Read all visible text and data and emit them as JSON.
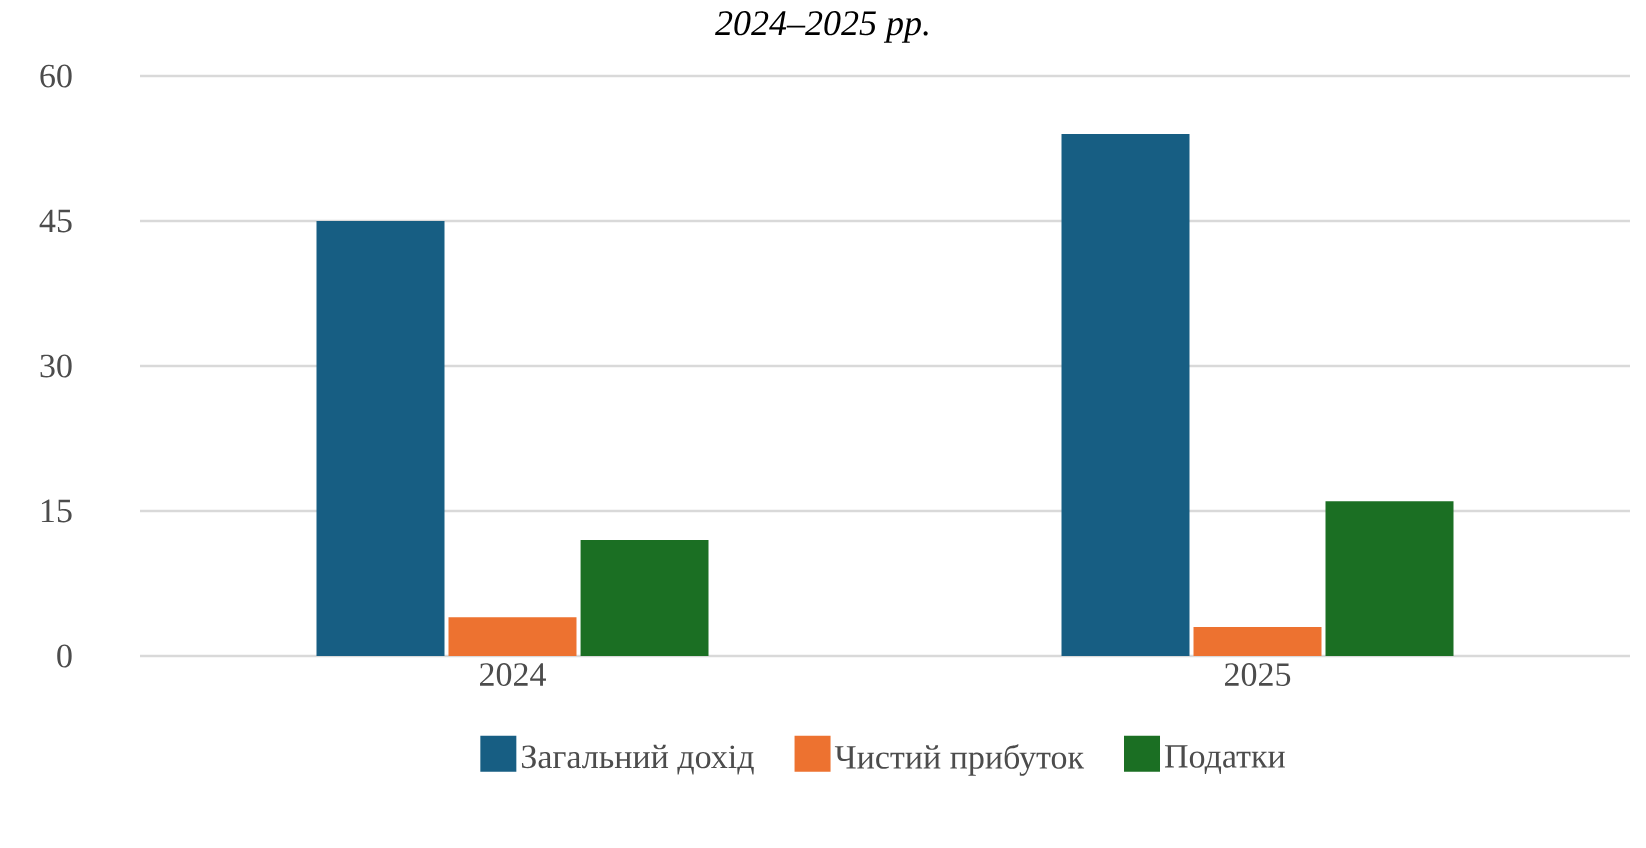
{
  "chart_data": {
    "type": "bar",
    "title": "2024–2025 рр.",
    "categories": [
      "2024",
      "2025"
    ],
    "series": [
      {
        "name": "Загальний дохід",
        "color": "#175e83",
        "values": [
          45,
          54
        ]
      },
      {
        "name": "Чистий прибуток",
        "color": "#ed7230",
        "values": [
          4,
          3
        ]
      },
      {
        "name": "Податки",
        "color": "#1b6f23",
        "values": [
          12,
          16
        ]
      }
    ],
    "ylim": [
      0,
      60
    ],
    "yticks": [
      0,
      15,
      30,
      45,
      60
    ],
    "grid": "y",
    "legend": "bottom"
  }
}
